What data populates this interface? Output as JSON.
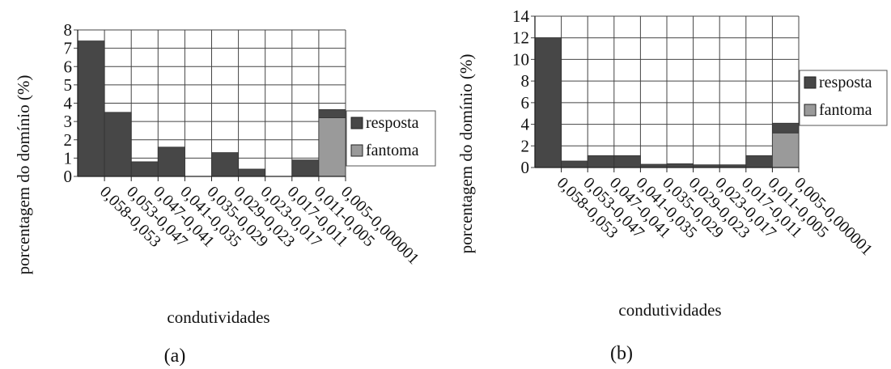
{
  "chart_data": [
    {
      "type": "bar",
      "panel_label": "(a)",
      "xlabel": "condutividades",
      "ylabel": "porcentagem do domínio (%)",
      "ylim": [
        0,
        8
      ],
      "yticks": [
        "0",
        "1",
        "2",
        "3",
        "4",
        "5",
        "6",
        "7",
        "8"
      ],
      "grid": true,
      "legend_position": "right",
      "categories": [
        "0,058-0,053",
        "0,053-0,047",
        "0,047-0,041",
        "0,041-0,035",
        "0,035-0,029",
        "0,029-0,023",
        "0,023-0,017",
        "0,017-0,011",
        "0,011-0,005",
        "0,005-0,000001"
      ],
      "series": [
        {
          "name": "resposta",
          "values": [
            7.4,
            3.5,
            0.8,
            1.6,
            0,
            1.3,
            0.4,
            0,
            0.9,
            0.45
          ]
        },
        {
          "name": "fantoma",
          "values": [
            0,
            0,
            0,
            0,
            0,
            0,
            0,
            0,
            0,
            3.2
          ]
        }
      ]
    },
    {
      "type": "bar",
      "panel_label": "(b)",
      "xlabel": "condutividades",
      "ylabel": "porcentagem do domínio (%)",
      "ylim": [
        0,
        14
      ],
      "yticks": [
        "0",
        "2",
        "4",
        "6",
        "8",
        "10",
        "12",
        "14"
      ],
      "grid": true,
      "legend_position": "right",
      "categories": [
        "0,058-0,053",
        "0,053-0,047",
        "0,047-0,041",
        "0,041-0,035",
        "0,035-0,029",
        "0,029-0,023",
        "0,023-0,017",
        "0,017-0,011",
        "0,011-0,005",
        "0,005-0,000001"
      ],
      "series": [
        {
          "name": "resposta",
          "values": [
            12,
            0.6,
            1.1,
            1.1,
            0.3,
            0.35,
            0.25,
            0.25,
            1.1,
            0.9
          ]
        },
        {
          "name": "fantoma",
          "values": [
            0,
            0,
            0,
            0,
            0,
            0,
            0,
            0,
            0,
            3.2
          ]
        }
      ]
    }
  ],
  "colors": {
    "resposta": "#474747",
    "fantoma": "#9a9a9a",
    "grid": "#444444",
    "text": "#111111"
  }
}
